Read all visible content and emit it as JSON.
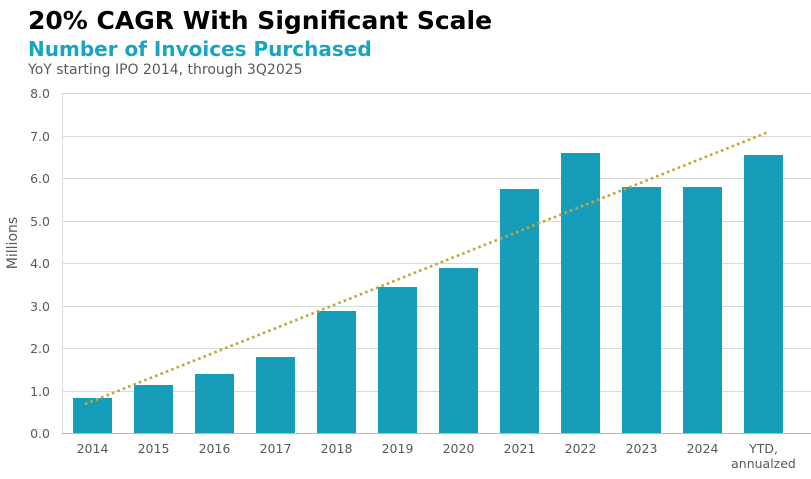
{
  "header": {
    "title": "20% CAGR With Significant Scale",
    "subtitle": "Number of Invoices Purchased",
    "caption": "YoY starting IPO 2014, through 3Q2025"
  },
  "chart_data": {
    "type": "bar",
    "title": "Number of Invoices Purchased",
    "subtitle_note": "YoY starting IPO 2014, through 3Q2025",
    "categories": [
      "2014",
      "2015",
      "2016",
      "2017",
      "2018",
      "2019",
      "2020",
      "2021",
      "2022",
      "2023",
      "2024",
      "YTD,\nannualzed"
    ],
    "values": [
      0.82,
      1.12,
      1.4,
      1.8,
      2.88,
      3.43,
      3.88,
      5.75,
      6.6,
      5.78,
      5.78,
      6.55
    ],
    "xlabel": "",
    "ylabel": "Millions",
    "ylim": [
      0,
      8
    ],
    "ytick_labels": [
      "0.0",
      "1.0",
      "2.0",
      "3.0",
      "4.0",
      "5.0",
      "6.0",
      "7.0",
      "8.0"
    ],
    "grid": "horizontal",
    "legend": "none",
    "trendline": {
      "style": "dotted",
      "start_value": 0.68,
      "end_value": 7.08
    },
    "colors": {
      "bar": "#169db9",
      "trendline": "#c4a535",
      "gridline": "#d9d9d9",
      "baseline": "#b7b7b7",
      "tick_text": "#595959",
      "subtitle_text": "#18a5c4",
      "title_text": "#000000"
    }
  }
}
